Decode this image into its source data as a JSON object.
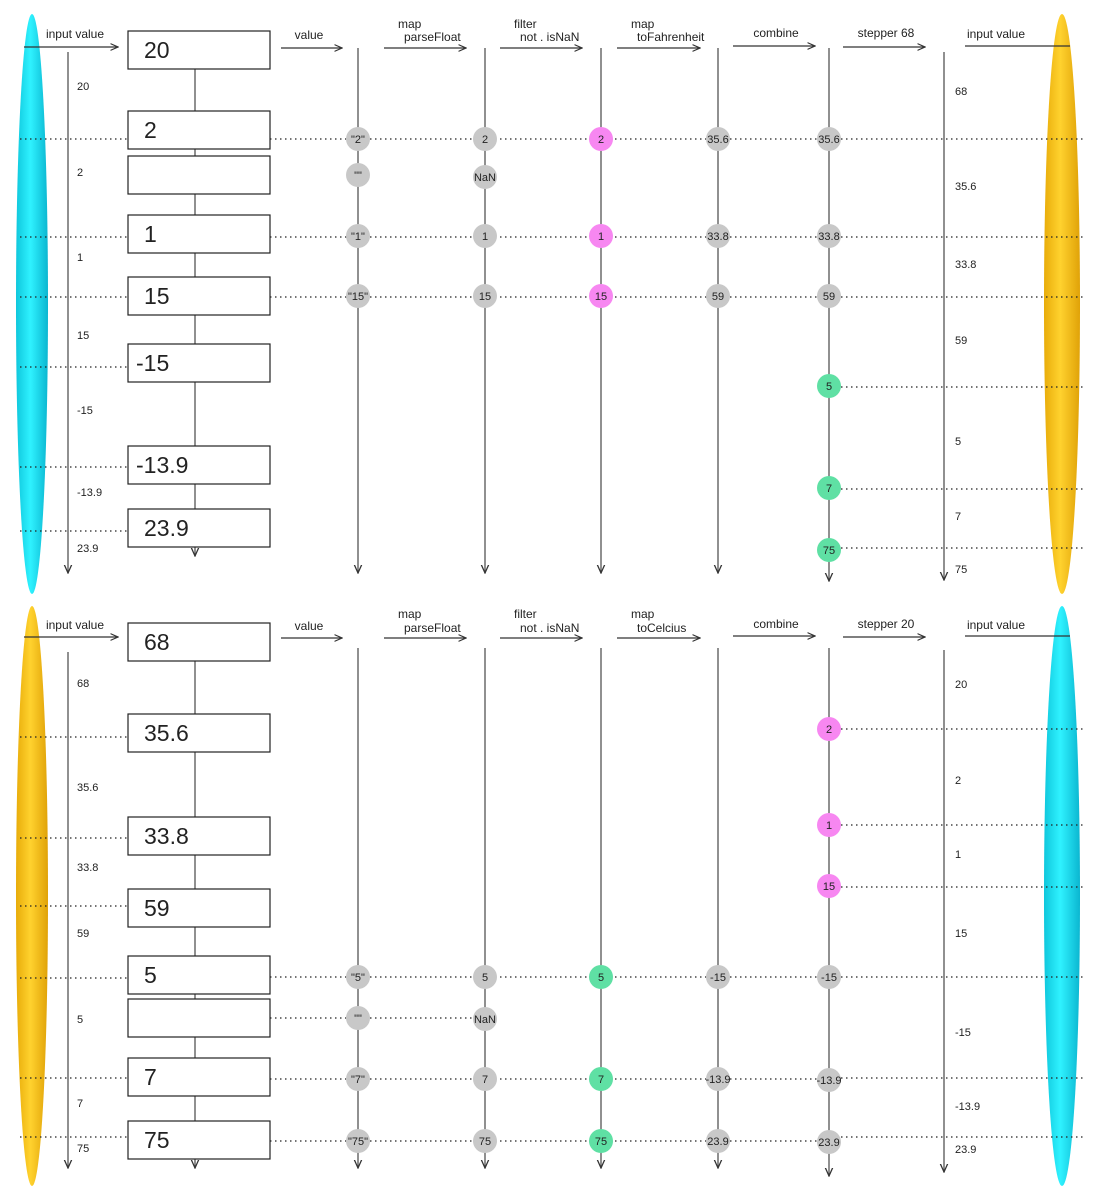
{
  "colors": {
    "cyan": "#19eaf9",
    "yellow": "#fcc81c",
    "gray": "#c8c8c8",
    "pink": "#f787f1",
    "green": "#5fe0a4",
    "line": "#555555"
  },
  "panels": [
    {
      "left_ellipse": "cyan",
      "right_ellipse": "yellow",
      "headers": {
        "input_in": "input value",
        "value": "value",
        "map_parse": [
          "map",
          "parseFloat"
        ],
        "filter": [
          "filter",
          "not . isNaN"
        ],
        "map_convert": [
          "map",
          "toFahrenheit"
        ],
        "combine": "combine",
        "stepper": "stepper 68",
        "input_out": "input value"
      },
      "inputs": [
        "20",
        "2",
        "",
        "1",
        "15",
        "-15",
        "-13.9",
        "23.9"
      ],
      "left_labels": [
        "20",
        "2",
        "1",
        "15",
        "-15",
        "-13.9",
        "23.9"
      ],
      "right_labels": [
        "68",
        "35.6",
        "33.8",
        "59",
        "5",
        "7",
        "75"
      ],
      "value_nodes": [
        "\"2\"",
        "\"\"",
        "\"1\"",
        "\"15\""
      ],
      "parse_nodes": [
        "2",
        "NaN",
        "1",
        "15"
      ],
      "filter_nodes": [
        "2",
        "1",
        "15"
      ],
      "convert_nodes": [
        "35.6",
        "33.8",
        "59"
      ],
      "combine_nodes": [
        "35.6",
        "33.8",
        "59",
        "5",
        "7",
        "75"
      ]
    },
    {
      "left_ellipse": "yellow",
      "right_ellipse": "cyan",
      "headers": {
        "input_in": "input value",
        "value": "value",
        "map_parse": [
          "map",
          "parseFloat"
        ],
        "filter": [
          "filter",
          "not . isNaN"
        ],
        "map_convert": [
          "map",
          "toCelcius"
        ],
        "combine": "combine",
        "stepper": "stepper 20",
        "input_out": "input value"
      },
      "inputs": [
        "68",
        "35.6",
        "33.8",
        "59",
        "5",
        "",
        "7",
        "75"
      ],
      "left_labels": [
        "68",
        "35.6",
        "33.8",
        "59",
        "5",
        "7",
        "75"
      ],
      "right_labels": [
        "20",
        "2",
        "1",
        "15",
        "-15",
        "-13.9",
        "23.9"
      ],
      "value_nodes": [
        "\"5\"",
        "\"\"",
        "\"7\"",
        "\"75\""
      ],
      "parse_nodes": [
        "5",
        "NaN",
        "7",
        "75"
      ],
      "filter_nodes": [
        "5",
        "7",
        "75"
      ],
      "convert_nodes": [
        "-15",
        "-13.9",
        "23.9"
      ],
      "combine_nodes": [
        "2",
        "1",
        "15",
        "-15",
        "-13.9",
        "23.9"
      ]
    }
  ]
}
